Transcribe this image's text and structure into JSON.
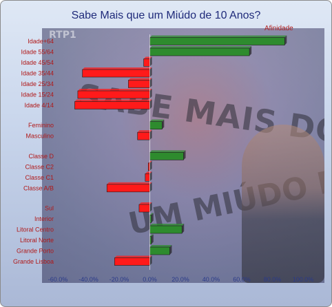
{
  "chart_data": {
    "type": "bar",
    "orientation": "horizontal",
    "title": "Sabe Mais que um Miúdo de 10 Anos?",
    "series_label": "Afinidade",
    "watermark": "RTP1",
    "categories": [
      "Idade+64",
      "Idade 55/64",
      "Idade 45/54",
      "Idade 35/44",
      "Idade 25/34",
      "Idade 15/24",
      "Idade 4/14",
      "Feminino",
      "Masculino",
      "Classe D",
      "Classe C2",
      "Classe C1",
      "Classe A/B",
      "Sul",
      "Interior",
      "Litoral Centro",
      "Litoral Norte",
      "Grande Porto",
      "Grande Lisboa"
    ],
    "groups": [
      7,
      2,
      4,
      6
    ],
    "values": [
      88,
      65,
      -4,
      -44,
      -14,
      -47,
      -49,
      8,
      -8,
      22,
      -1,
      -3,
      -28,
      -7,
      1,
      21,
      1,
      13,
      -23
    ],
    "xlim": [
      -60,
      100
    ],
    "xticks": [
      "-60.0%",
      "-40.0%",
      "-20.0%",
      "0.0%",
      "20.0%",
      "40.0%",
      "60.0%",
      "80.0%",
      "100.0%"
    ],
    "positive_color": "#2e8b2e",
    "negative_color": "#ff1a1a"
  }
}
